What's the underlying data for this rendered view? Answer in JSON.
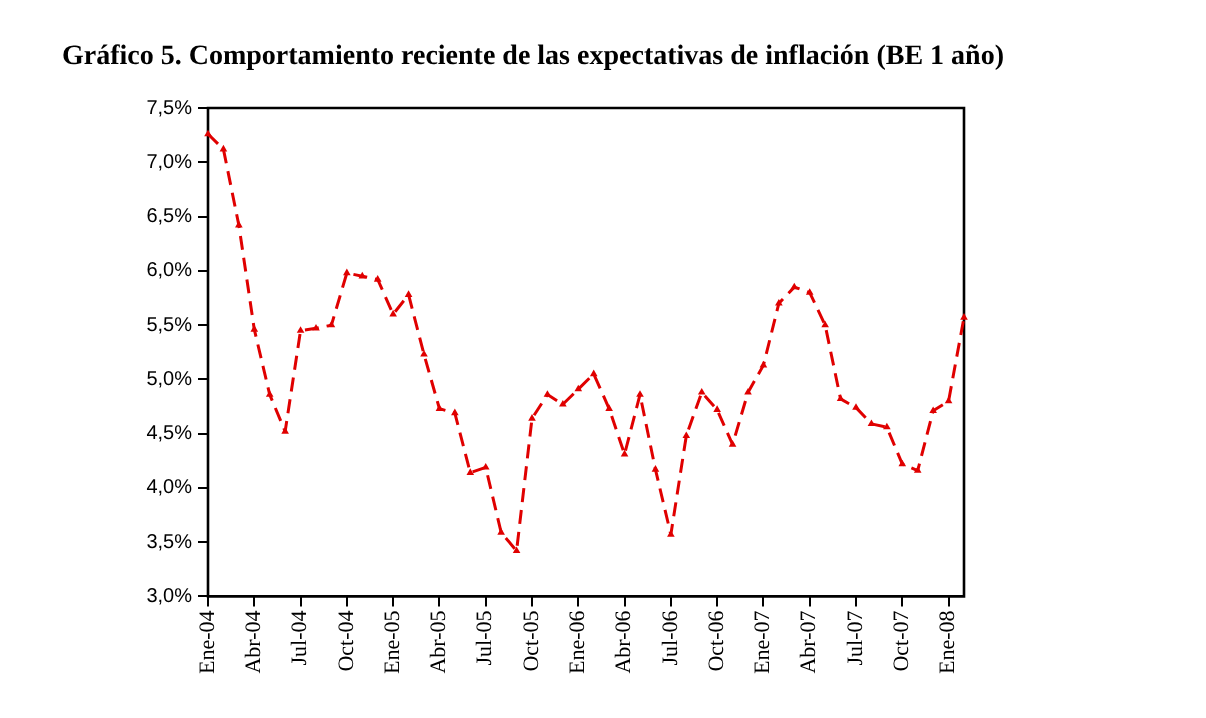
{
  "chart_data": {
    "type": "line",
    "title": "Gráfico 5. Comportamiento reciente de las expectativas de inflación (BE 1 año)",
    "categories": [
      "Ene-04",
      null,
      null,
      "Abr-04",
      null,
      null,
      "Jul-04",
      null,
      null,
      "Oct-04",
      null,
      null,
      "Ene-05",
      null,
      null,
      "Abr-05",
      null,
      null,
      "Jul-05",
      null,
      null,
      "Oct-05",
      null,
      null,
      "Ene-06",
      null,
      null,
      "Abr-06",
      null,
      null,
      "Jul-06",
      null,
      null,
      "Oct-06",
      null,
      null,
      "Ene-07",
      null,
      null,
      "Abr-07",
      null,
      null,
      "Jul-07",
      null,
      null,
      "Oct-07",
      null,
      null,
      "Ene-08",
      null
    ],
    "series": [
      {
        "color": "#e00000",
        "values": [
          7.26,
          7.12,
          6.42,
          5.46,
          4.86,
          4.52,
          5.45,
          5.47,
          5.5,
          5.98,
          5.95,
          5.92,
          5.6,
          5.78,
          5.23,
          4.73,
          4.69,
          4.14,
          4.19,
          3.59,
          3.42,
          4.64,
          4.86,
          4.77,
          4.91,
          5.05,
          4.73,
          4.31,
          4.86,
          4.17,
          3.57,
          4.48,
          4.88,
          4.72,
          4.4,
          4.88,
          5.13,
          5.7,
          5.85,
          5.8,
          5.5,
          4.82,
          4.74,
          4.59,
          4.56,
          4.22,
          4.16,
          4.71,
          4.8,
          5.57
        ]
      }
    ],
    "ylim": [
      3,
      7.5
    ],
    "yticks": [
      {
        "value": 3,
        "label": "3,0%"
      },
      {
        "value": 3.5,
        "label": "3,5%"
      },
      {
        "value": 4,
        "label": "4,0%"
      },
      {
        "value": 4.5,
        "label": "4,5%"
      },
      {
        "value": 5,
        "label": "5,0%"
      },
      {
        "value": 5.5,
        "label": "5,5%"
      },
      {
        "value": 6,
        "label": "6,0%"
      },
      {
        "value": 6.5,
        "label": "6,5%"
      },
      {
        "value": 7,
        "label": "7,0%"
      },
      {
        "value": 7.5,
        "label": "7,5%"
      }
    ],
    "grid": false,
    "legend": false,
    "marker": "triangle",
    "line_style": "dashed"
  }
}
